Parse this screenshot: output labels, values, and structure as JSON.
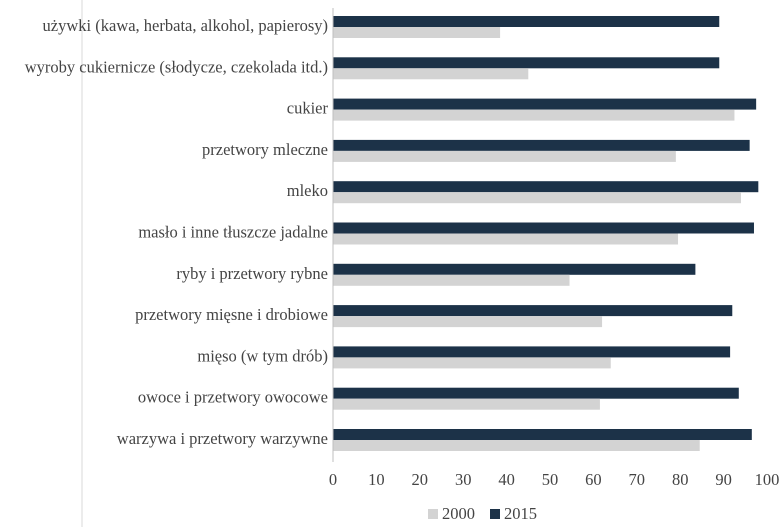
{
  "chart_data": {
    "type": "bar",
    "orientation": "horizontal",
    "categories": [
      "używki (kawa, herbata, alkohol, papierosy)",
      "wyroby cukiernicze (słodycze, czekolada itd.)",
      "cukier",
      "przetwory mleczne",
      "mleko",
      "masło i inne tłuszcze jadalne",
      "ryby i przetwory rybne",
      "przetwory mięsne i drobiowe",
      "mięso (w tym drób)",
      "owoce i przetwory owocowe",
      "warzywa i przetwory warzywne"
    ],
    "series": [
      {
        "name": "2000",
        "color": "#d3d3d3",
        "values": [
          38.5,
          45,
          92.5,
          79,
          94,
          79.5,
          54.5,
          62,
          64,
          61.5,
          84.5
        ]
      },
      {
        "name": "2015",
        "color": "#1c3248",
        "values": [
          89,
          89,
          97.5,
          96,
          98,
          97,
          83.5,
          92,
          91.5,
          93.5,
          96.5
        ]
      }
    ],
    "xticks": [
      "0",
      "10",
      "20",
      "30",
      "40",
      "50",
      "60",
      "70",
      "80",
      "90",
      "100"
    ],
    "xlim": [
      0,
      100
    ],
    "legend_position": "bottom",
    "grid": false
  }
}
